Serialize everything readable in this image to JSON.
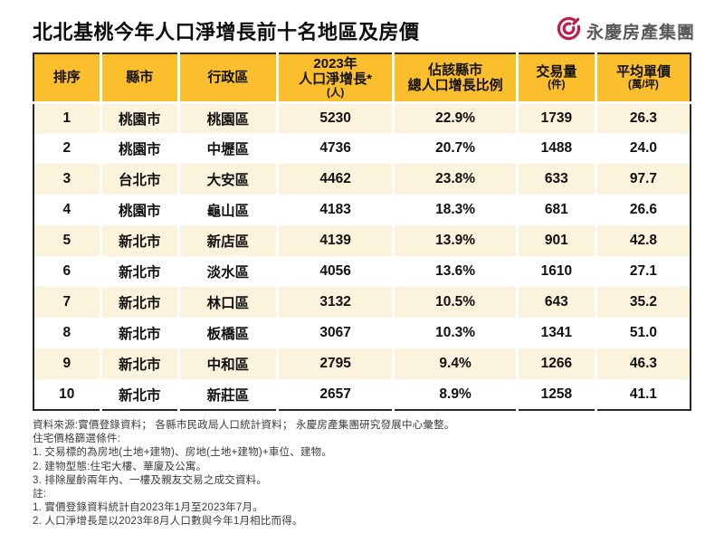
{
  "header": {
    "title": "北北基桃今年人口淨增長前十名地區及房價",
    "logo_text": "永慶房產集團",
    "logo_color": "#be1e4e"
  },
  "colors": {
    "header_row": "#fbbe2d",
    "odd_row": "#fcf3dc",
    "even_row": "#ffffff",
    "table_border": "#262626"
  },
  "table": {
    "columns": [
      {
        "line1": "排序"
      },
      {
        "line1": "縣市"
      },
      {
        "line1": "行政區"
      },
      {
        "line1": "2023年",
        "line2": "人口淨增長*",
        "sub": "(人)"
      },
      {
        "line1": "佔該縣市",
        "line2": "總人口增長比例"
      },
      {
        "line1": "交易量",
        "sub": "(件)"
      },
      {
        "line1": "平均單價",
        "sub": "(萬/坪)"
      }
    ],
    "rows": [
      [
        "1",
        "桃園市",
        "桃園區",
        "5230",
        "22.9%",
        "1739",
        "26.3"
      ],
      [
        "2",
        "桃園市",
        "中壢區",
        "4736",
        "20.7%",
        "1488",
        "24.0"
      ],
      [
        "3",
        "台北市",
        "大安區",
        "4462",
        "23.8%",
        "633",
        "97.7"
      ],
      [
        "4",
        "桃園市",
        "龜山區",
        "4183",
        "18.3%",
        "681",
        "26.6"
      ],
      [
        "5",
        "新北市",
        "新店區",
        "4139",
        "13.9%",
        "901",
        "42.8"
      ],
      [
        "6",
        "新北市",
        "淡水區",
        "4056",
        "13.6%",
        "1610",
        "27.1"
      ],
      [
        "7",
        "新北市",
        "林口區",
        "3132",
        "10.5%",
        "643",
        "35.2"
      ],
      [
        "8",
        "新北市",
        "板橋區",
        "3067",
        "10.3%",
        "1341",
        "51.0"
      ],
      [
        "9",
        "新北市",
        "中和區",
        "2795",
        "9.4%",
        "1266",
        "46.3"
      ],
      [
        "10",
        "新北市",
        "新莊區",
        "2657",
        "8.9%",
        "1258",
        "41.1"
      ]
    ]
  },
  "chart_data": {
    "type": "table",
    "title": "北北基桃今年人口淨增長前十名地區及房價",
    "columns": [
      "排序",
      "縣市",
      "行政區",
      "2023年人口淨增長*(人)",
      "佔該縣市總人口增長比例",
      "交易量(件)",
      "平均單價(萬/坪)"
    ],
    "rows": [
      [
        1,
        "桃園市",
        "桃園區",
        5230,
        "22.9%",
        1739,
        26.3
      ],
      [
        2,
        "桃園市",
        "中壢區",
        4736,
        "20.7%",
        1488,
        24.0
      ],
      [
        3,
        "台北市",
        "大安區",
        4462,
        "23.8%",
        633,
        97.7
      ],
      [
        4,
        "桃園市",
        "龜山區",
        4183,
        "18.3%",
        681,
        26.6
      ],
      [
        5,
        "新北市",
        "新店區",
        4139,
        "13.9%",
        901,
        42.8
      ],
      [
        6,
        "新北市",
        "淡水區",
        4056,
        "13.6%",
        1610,
        27.1
      ],
      [
        7,
        "新北市",
        "林口區",
        3132,
        "10.5%",
        643,
        35.2
      ],
      [
        8,
        "新北市",
        "板橋區",
        3067,
        "10.3%",
        1341,
        51.0
      ],
      [
        9,
        "新北市",
        "中和區",
        2795,
        "9.4%",
        1266,
        46.3
      ],
      [
        10,
        "新北市",
        "新莊區",
        2657,
        "8.9%",
        1258,
        41.1
      ]
    ]
  },
  "footnotes": {
    "lines": [
      "資料來源:實價登錄資料； 各縣市民政局人口統計資料； 永慶房產集團研究發展中心彙整。",
      "住宅價格篩選條件:",
      "1. 交易標的為房地(土地+建物)、房地(土地+建物)+車位、建物。",
      "2. 建物型態:住宅大樓、華廈及公寓。",
      "3. 排除屋齡兩年內、一樓及親友交易之成交資料。",
      "註:",
      "1. 實價登錄資料統計自2023年1月至2023年7月。",
      "2. 人口淨增長是以2023年8月人口數與今年1月相比而得。"
    ]
  }
}
